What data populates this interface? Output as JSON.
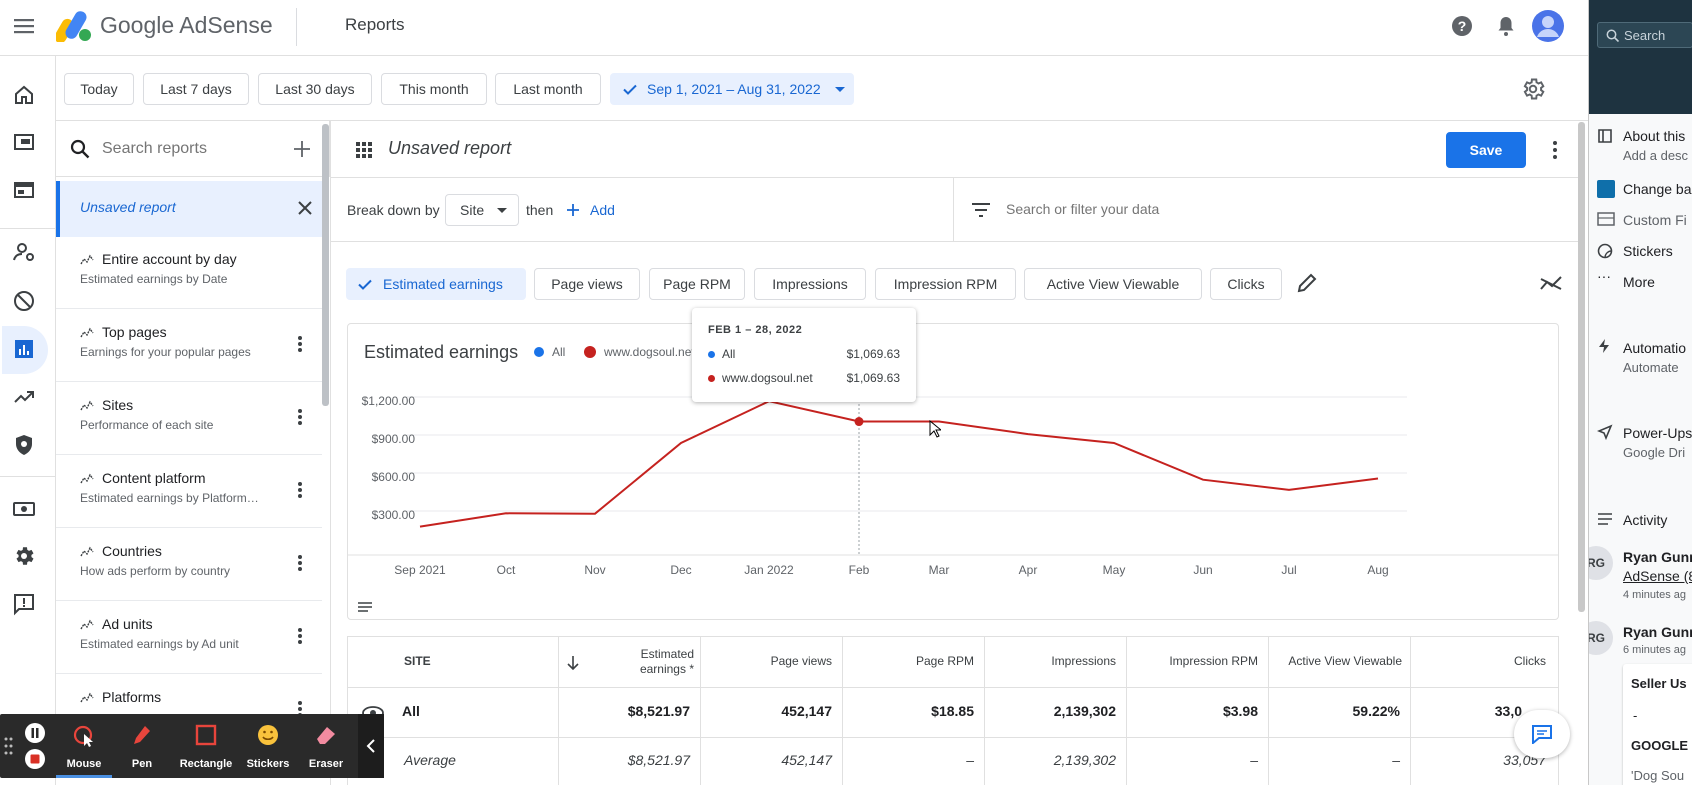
{
  "app": {
    "name": "Google AdSense",
    "section": "Reports"
  },
  "date_chips": [
    "Today",
    "Last 7 days",
    "Last 30 days",
    "This month",
    "Last month"
  ],
  "date_range": "Sep 1, 2021 – Aug 31, 2022",
  "search_reports": {
    "placeholder": "Search reports"
  },
  "reports": {
    "active": "Unsaved report",
    "items": [
      {
        "title": "Entire account by day",
        "subtitle": "Estimated earnings by Date"
      },
      {
        "title": "Top pages",
        "subtitle": "Earnings for your popular pages"
      },
      {
        "title": "Sites",
        "subtitle": "Performance of each site"
      },
      {
        "title": "Content platform",
        "subtitle": "Estimated earnings by Platform…"
      },
      {
        "title": "Countries",
        "subtitle": "How ads perform by country"
      },
      {
        "title": "Ad units",
        "subtitle": "Estimated earnings by Ad unit"
      },
      {
        "title": "Platforms",
        "subtitle": ""
      }
    ]
  },
  "report": {
    "title": "Unsaved report",
    "save_label": "Save"
  },
  "breakdown": {
    "label": "Break down by",
    "value": "Site",
    "then": "then",
    "add": "Add",
    "filter_placeholder": "Search or filter your data"
  },
  "metrics": [
    "Estimated earnings",
    "Page views",
    "Page RPM",
    "Impressions",
    "Impression RPM",
    "Active View Viewable",
    "Clicks"
  ],
  "chart_data": {
    "type": "line",
    "title": "Estimated earnings",
    "legend": [
      "All",
      "www.dogsoul.net"
    ],
    "colors": {
      "All": "#1a73e8",
      "www.dogsoul.net": "#c5221f"
    },
    "categories": [
      "Sep 2021",
      "Oct",
      "Nov",
      "Dec",
      "Jan 2022",
      "Feb",
      "Mar",
      "Apr",
      "May",
      "Jun",
      "Jul",
      "Aug"
    ],
    "series": [
      {
        "name": "www.dogsoul.net",
        "values": [
          240,
          345,
          342,
          900,
          1230,
          1069.63,
          1070,
          970,
          900,
          610,
          530,
          620
        ]
      }
    ],
    "y_ticks": [
      "$300.00",
      "$600.00",
      "$900.00",
      "$1,200.00"
    ],
    "ylim": [
      0,
      1300
    ],
    "grid": true,
    "tooltip": {
      "heading": "FEB 1 – 28, 2022",
      "rows": [
        {
          "label": "All",
          "value": "$1,069.63",
          "color": "#1a73e8"
        },
        {
          "label": "www.dogsoul.net",
          "value": "$1,069.63",
          "color": "#c5221f"
        }
      ]
    }
  },
  "table": {
    "headers": [
      "SITE",
      "Estimated earnings *",
      "Page views",
      "Page RPM",
      "Impressions",
      "Impression RPM",
      "Active View Viewable",
      "Clicks"
    ],
    "rows": [
      {
        "label": "All",
        "cells": [
          "$8,521.97",
          "452,147",
          "$18.85",
          "2,139,302",
          "$3.98",
          "59.22%",
          "33,0"
        ]
      },
      {
        "label": "Average",
        "cells": [
          "$8,521.97",
          "452,147",
          "–",
          "2,139,302",
          "–",
          "–",
          "33,057"
        ]
      }
    ]
  },
  "right_panel": {
    "search": "Search",
    "items": [
      {
        "title": "About this",
        "sub": "Add a desc"
      },
      {
        "title": "Change ba",
        "sub": ""
      },
      {
        "title": "Custom Fi",
        "sub": ""
      },
      {
        "title": "Stickers",
        "sub": ""
      },
      {
        "title": "More",
        "sub": ""
      },
      {
        "title": "Automatio",
        "sub": "Automate"
      },
      {
        "title": "Power-Ups",
        "sub": "Google Dri"
      },
      {
        "title": "Activity",
        "sub": ""
      }
    ],
    "activity": [
      {
        "initials": "RG",
        "name": "Ryan Gunn",
        "link": "AdSense (8",
        "time": "4 minutes ag"
      },
      {
        "initials": "RG",
        "name": "Ryan Gunn",
        "link": "",
        "time": "6 minutes ag"
      }
    ],
    "card": {
      "title": "Seller Us",
      "dash": "-",
      "brand": "GOOGLE",
      "quote": "'Dog Sou"
    }
  },
  "recorder": {
    "tools": [
      "Mouse",
      "Pen",
      "Rectangle",
      "Stickers",
      "Eraser"
    ]
  }
}
